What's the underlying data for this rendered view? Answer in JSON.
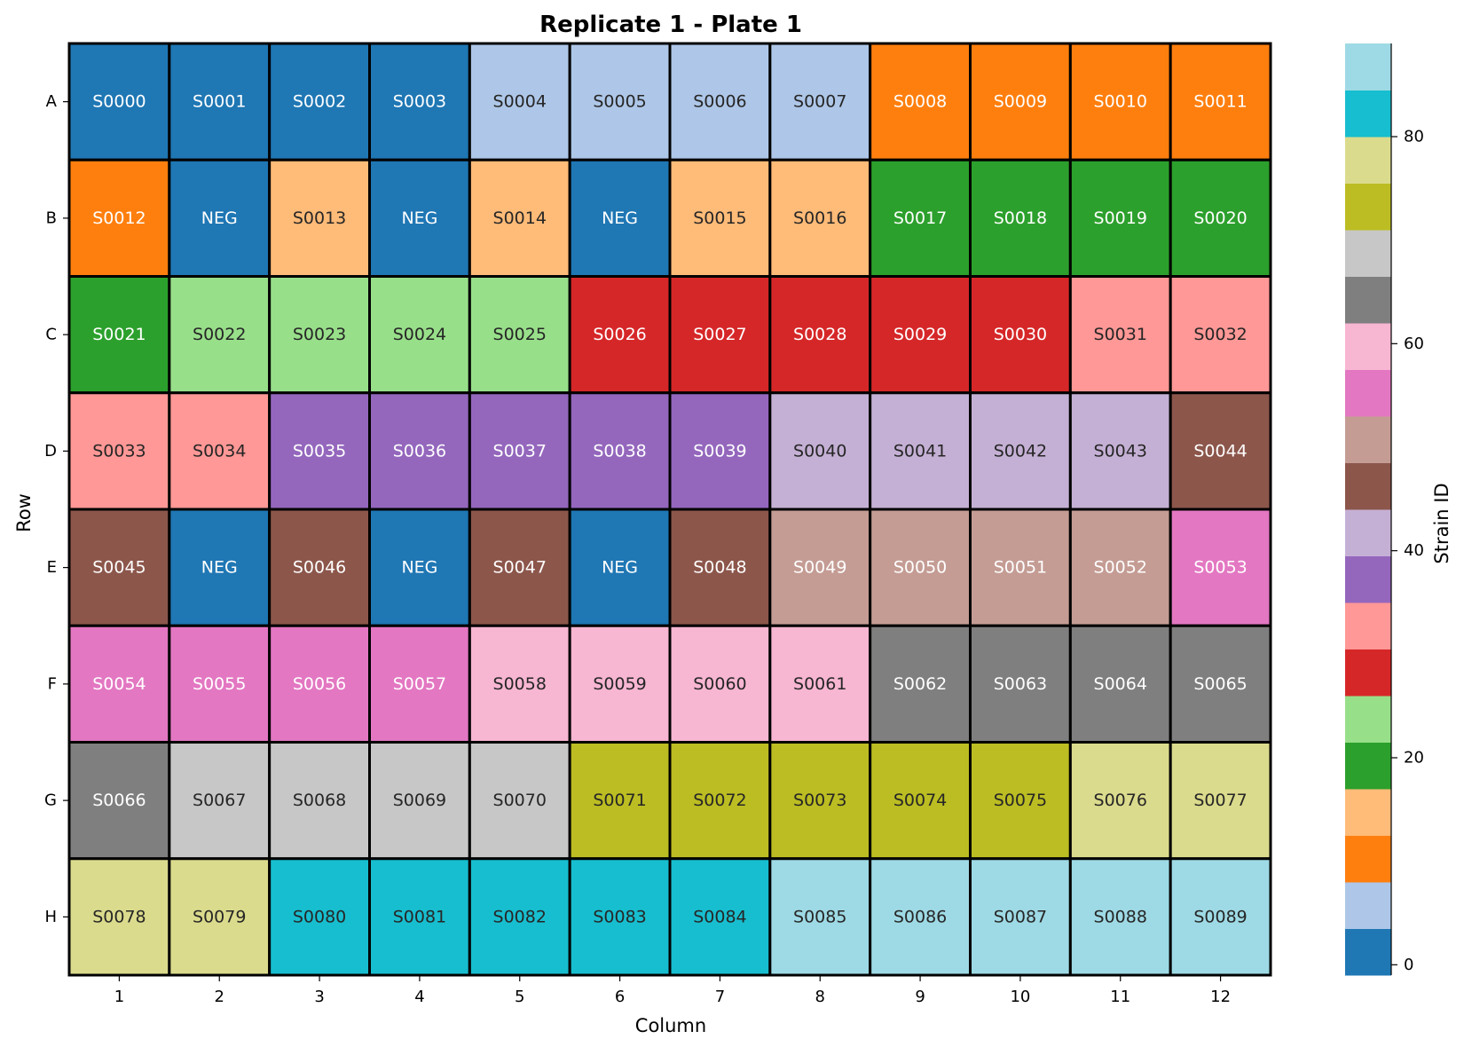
{
  "chart_data": {
    "type": "heatmap",
    "title": "Replicate 1 - Plate 1",
    "xlabel": "Column",
    "ylabel": "Row",
    "colorbar_label": "Strain ID",
    "colorbar_ticks": [
      0,
      20,
      40,
      60,
      80
    ],
    "colorbar_range": [
      -1,
      89
    ],
    "grid": false,
    "colormap": [
      "#1f77b4",
      "#aec7e8",
      "#ff7f0e",
      "#ffbb78",
      "#2ca02c",
      "#98df8a",
      "#d62728",
      "#ff9896",
      "#9467bd",
      "#c5b0d5",
      "#8c564b",
      "#c49c94",
      "#e377c2",
      "#f7b6d2",
      "#7f7f7f",
      "#c7c7c7",
      "#bcbd22",
      "#dbdb8d",
      "#17becf",
      "#9edae5"
    ],
    "columns": [
      "1",
      "2",
      "3",
      "4",
      "5",
      "6",
      "7",
      "8",
      "9",
      "10",
      "11",
      "12"
    ],
    "rows": [
      "A",
      "B",
      "C",
      "D",
      "E",
      "F",
      "G",
      "H"
    ],
    "labels": [
      [
        "S0000",
        "S0001",
        "S0002",
        "S0003",
        "S0004",
        "S0005",
        "S0006",
        "S0007",
        "S0008",
        "S0009",
        "S0010",
        "S0011"
      ],
      [
        "S0012",
        "NEG",
        "S0013",
        "NEG",
        "S0014",
        "NEG",
        "S0015",
        "S0016",
        "S0017",
        "S0018",
        "S0019",
        "S0020"
      ],
      [
        "S0021",
        "S0022",
        "S0023",
        "S0024",
        "S0025",
        "S0026",
        "S0027",
        "S0028",
        "S0029",
        "S0030",
        "S0031",
        "S0032"
      ],
      [
        "S0033",
        "S0034",
        "S0035",
        "S0036",
        "S0037",
        "S0038",
        "S0039",
        "S0040",
        "S0041",
        "S0042",
        "S0043",
        "S0044"
      ],
      [
        "S0045",
        "NEG",
        "S0046",
        "NEG",
        "S0047",
        "NEG",
        "S0048",
        "S0049",
        "S0050",
        "S0051",
        "S0052",
        "S0053"
      ],
      [
        "S0054",
        "S0055",
        "S0056",
        "S0057",
        "S0058",
        "S0059",
        "S0060",
        "S0061",
        "S0062",
        "S0063",
        "S0064",
        "S0065"
      ],
      [
        "S0066",
        "S0067",
        "S0068",
        "S0069",
        "S0070",
        "S0071",
        "S0072",
        "S0073",
        "S0074",
        "S0075",
        "S0076",
        "S0077"
      ],
      [
        "S0078",
        "S0079",
        "S0080",
        "S0081",
        "S0082",
        "S0083",
        "S0084",
        "S0085",
        "S0086",
        "S0087",
        "S0088",
        "S0089"
      ]
    ],
    "values": [
      [
        0,
        1,
        2,
        3,
        4,
        5,
        6,
        7,
        8,
        9,
        10,
        11
      ],
      [
        12,
        -1,
        13,
        -1,
        14,
        -1,
        15,
        16,
        17,
        18,
        19,
        20
      ],
      [
        21,
        22,
        23,
        24,
        25,
        26,
        27,
        28,
        29,
        30,
        31,
        32
      ],
      [
        33,
        34,
        35,
        36,
        37,
        38,
        39,
        40,
        41,
        42,
        43,
        44
      ],
      [
        45,
        -1,
        46,
        -1,
        47,
        -1,
        48,
        49,
        50,
        51,
        52,
        53
      ],
      [
        54,
        55,
        56,
        57,
        58,
        59,
        60,
        61,
        62,
        63,
        64,
        65
      ],
      [
        66,
        67,
        68,
        69,
        70,
        71,
        72,
        73,
        74,
        75,
        76,
        77
      ],
      [
        78,
        79,
        80,
        81,
        82,
        83,
        84,
        85,
        86,
        87,
        88,
        89
      ]
    ]
  }
}
